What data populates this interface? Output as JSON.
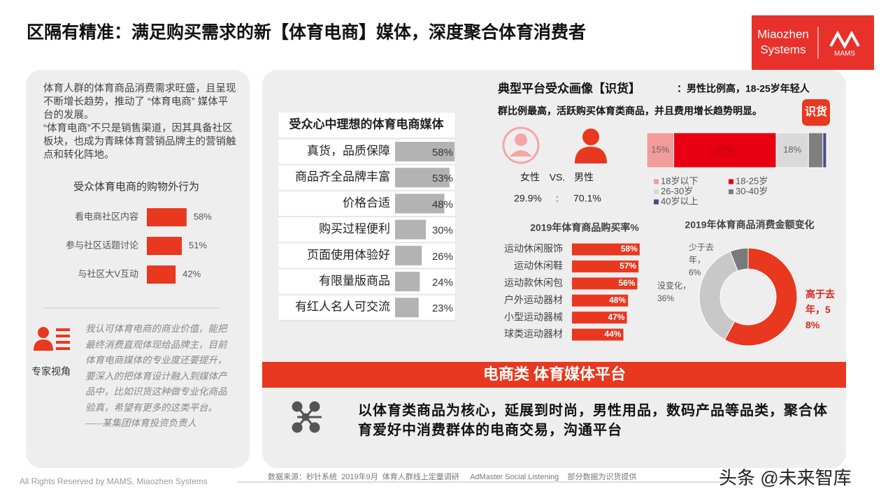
{
  "title": "区隔有精准：满足购买需求的新【体育电商】媒体，深度聚合体育消费者",
  "logo": {
    "brand": [
      "Miaozhen",
      "Systems"
    ],
    "sub": "MAMS"
  },
  "intro": [
    "体育人群的体育商品消费需求旺盛，且呈现不断增长趋势，推动了 “体育电商” 媒体平台的发展。",
    "“体育电商”不只是销售渠道，因其具备社区板块，也成为青睐体育营销品牌主的营销触点和转化阵地。"
  ],
  "expert": {
    "label": "专家视角",
    "quote": "我认可体育电商的商业价值，能把最终消费直观体现给品牌主，目前体育电商媒体的专业度还要提升，要深入的把体育设计融入到媒体产品中，比如识货这种做专业化商品验真，希望有更多的这类平台。——某集团体育投资负责人"
  },
  "profile": {
    "heading": "典型平台受众画像【识货】",
    "summary": [
      "：男性比例高，18-25岁年轻人",
      "群比例最高，活跃购买体育类商品，并且费用增长趋势明显。"
    ],
    "badge": "识货",
    "female": "女性",
    "vs": "VS.",
    "male": "男性",
    "female_share": "29.9%",
    "colon": ":",
    "male_share": "70.1%"
  },
  "banner": "电商类 体育媒体平台",
  "description": "以体育类商品为核心，延展到时尚，男性用品，数码产品等品类，聚合体育爱好中消费群体的电商交易，沟通平台",
  "source": "数据来源：秒针系统  2019年9月  体育人群线上定量调研     AdMaster Social Listening    部分数据为识货提供",
  "copyright": "All Rights Reserved by MAMS, Miaozhen Systems",
  "watermark": "头条 @未来智库",
  "chart_data": [
    {
      "type": "bar",
      "title": "受众体育电商的购物外行为",
      "categories": [
        "看电商社区内容",
        "参与社区话题讨论",
        "与社区大V互动"
      ],
      "values": [
        58,
        51,
        42
      ],
      "value_labels": [
        "58%",
        "51%",
        "42%"
      ],
      "color": "#e8381f"
    },
    {
      "type": "bar",
      "title": "受众心中理想的体育电商媒体",
      "categories": [
        "真货，品质保障",
        "商品齐全品牌丰富",
        "价格合适",
        "购买过程便利",
        "页面使用体验好",
        "有限量版商品",
        "有红人名人可交流"
      ],
      "values": [
        58,
        53,
        48,
        30,
        26,
        24,
        23
      ],
      "value_labels": [
        "58%",
        "53%",
        "48%",
        "30%",
        "26%",
        "24%",
        "23%"
      ],
      "color": "#b3b3b3"
    },
    {
      "type": "bar",
      "stacked": true,
      "series": [
        {
          "name": "18岁以下",
          "color": "#f29c9c",
          "values": [
            15
          ],
          "value_labels": [
            "15%"
          ]
        },
        {
          "name": "18-25岁",
          "color": "#e60012",
          "values": [
            57
          ],
          "value_labels": [
            "57%"
          ]
        },
        {
          "name": "26-30岁",
          "color": "#d9d9d9",
          "values": [
            18
          ],
          "value_labels": [
            "18%"
          ]
        },
        {
          "name": "30-40岁",
          "color": "#7f7f7f",
          "values": [
            8
          ]
        },
        {
          "name": "40岁以上",
          "color": "#4b4b8f",
          "values": [
            2
          ]
        }
      ]
    },
    {
      "type": "donut",
      "title": "2019年体育商品消费金额变化",
      "values": [
        58,
        36,
        6
      ],
      "value_labels": [
        "高于去年，58%",
        "没变化，36%",
        "少于去年，6%"
      ],
      "colors": [
        "#e8381f",
        "#c8c8c8",
        "#7a7a7a"
      ]
    },
    {
      "type": "bar",
      "title": "2019年体育商品购买率%",
      "categories": [
        "运动休闲服饰",
        "运动休闲鞋",
        "运动款休闲包",
        "户外运动器材",
        "小型运动器械",
        "球类运动器材"
      ],
      "values": [
        58,
        57,
        56,
        48,
        47,
        44
      ],
      "value_labels": [
        "58%",
        "57%",
        "56%",
        "48%",
        "47%",
        "44%"
      ],
      "color": "#e8381f"
    }
  ]
}
